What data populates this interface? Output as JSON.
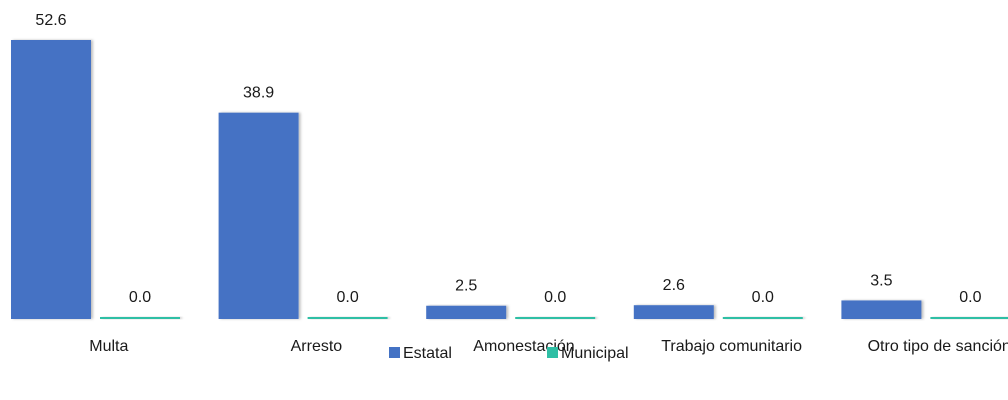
{
  "chart_data": {
    "type": "bar",
    "title": "",
    "xlabel": "",
    "ylabel": "",
    "categories": [
      "Multa",
      "Arresto",
      "Amonestación",
      "Trabajo comunitario",
      "Otro tipo de sanción"
    ],
    "series": [
      {
        "name": "Estatal",
        "values": [
          52.6,
          38.9,
          2.5,
          2.6,
          3.5
        ],
        "labels": [
          "52.6",
          "38.9",
          "2.5",
          "2.6",
          "3.5"
        ],
        "color": "#4472C4"
      },
      {
        "name": "Municipal",
        "values": [
          0.0,
          0.0,
          0.0,
          0.0,
          0.0
        ],
        "labels": [
          "0.0",
          "0.0",
          "0.0",
          "0.0",
          "0.0"
        ],
        "color": "#2FBFA5"
      }
    ],
    "ylim": [
      0,
      52.6
    ],
    "grid": false,
    "legend_position": "bottom"
  }
}
